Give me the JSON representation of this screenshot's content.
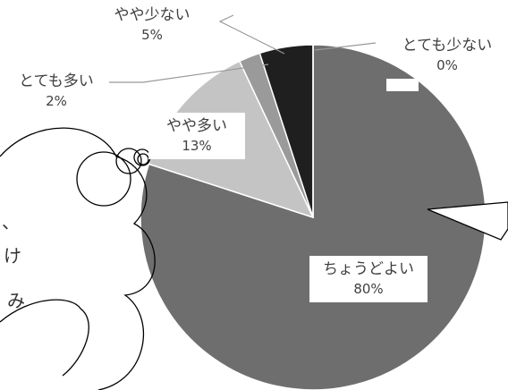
{
  "chart_data": {
    "type": "pie",
    "slices": [
      {
        "label": "ちょうどよい",
        "value": 80,
        "value_label": "80%",
        "color": "#6e6e6e"
      },
      {
        "label": "やや多い",
        "value": 13,
        "value_label": "13%",
        "color": "#c4c4c4"
      },
      {
        "label": "とても多い",
        "value": 2,
        "value_label": "2%",
        "color": "#9a9a9a"
      },
      {
        "label": "やや少ない",
        "value": 5,
        "value_label": "5%",
        "color": "#1f1f1f"
      },
      {
        "label": "とても少ない",
        "value": 0,
        "value_label": "0%",
        "color": "#e0e0e0"
      }
    ],
    "start_angle_deg": 0,
    "direction": "clockwise"
  },
  "bubble": {
    "fragments": [
      "、",
      "け",
      "み"
    ]
  }
}
